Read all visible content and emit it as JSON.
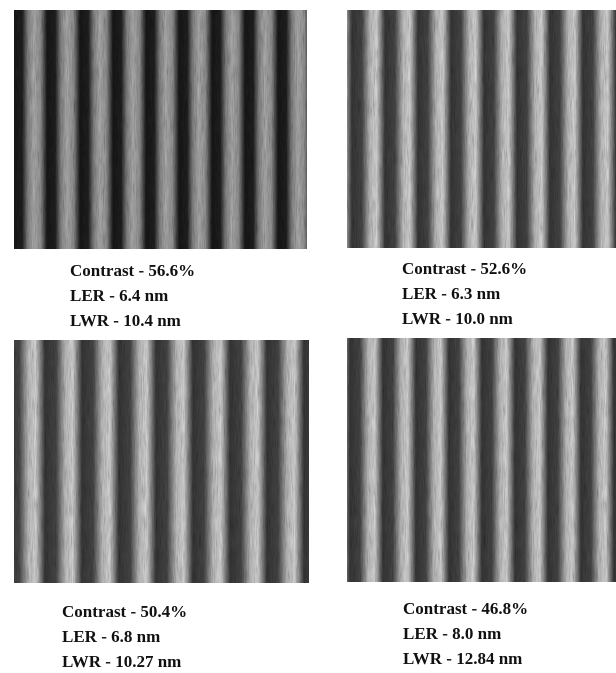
{
  "panels": [
    {
      "lines": [
        "Contrast - 56.6%",
        "LER - 6.4 nm",
        "LWR - 10.4 nm"
      ]
    },
    {
      "lines": [
        "Contrast - 52.6%",
        "LER - 6.3 nm",
        "LWR - 10.0 nm"
      ]
    },
    {
      "lines": [
        "Contrast - 50.4%",
        "LER - 6.8 nm",
        "LWR - 10.27 nm"
      ]
    },
    {
      "lines": [
        "Contrast - 46.8%",
        "LER - 8.0 nm",
        "LWR - 12.84 nm"
      ]
    }
  ]
}
